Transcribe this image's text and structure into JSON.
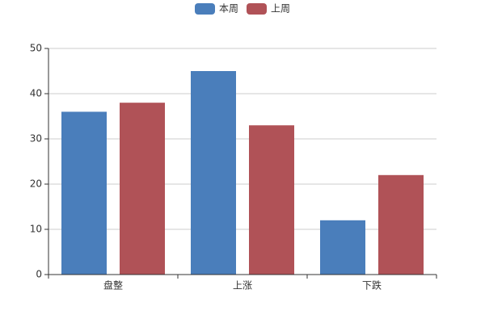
{
  "chart_data": {
    "type": "bar",
    "categories": [
      "盘整",
      "上涨",
      "下跌"
    ],
    "series": [
      {
        "name": "本周",
        "color": "#4a7ebb",
        "values": [
          36,
          45,
          12
        ]
      },
      {
        "name": "上周",
        "color": "#b05257",
        "values": [
          38,
          33,
          22
        ]
      }
    ],
    "ylim": [
      0,
      50
    ],
    "yticks": [
      0,
      10,
      20,
      30,
      40,
      50
    ],
    "grid": true,
    "legend": "top"
  }
}
